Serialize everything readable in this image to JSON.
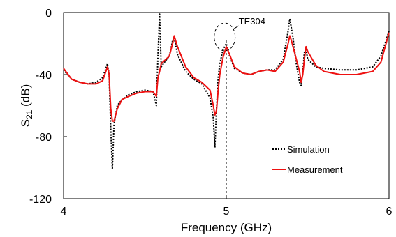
{
  "chart_data": {
    "type": "line",
    "title": "",
    "xlabel": "Frequency (GHz)",
    "ylabel_main": "S",
    "ylabel_sub": "21",
    "ylabel_unit": " (dB)",
    "xlim": [
      4,
      6
    ],
    "ylim": [
      -120,
      0
    ],
    "xticks": [
      4,
      5,
      6
    ],
    "xtick_labels": [
      "4",
      "5",
      "6"
    ],
    "yticks": [
      0,
      -40,
      -80,
      -120
    ],
    "ytick_labels": [
      "0",
      "-40",
      "-80",
      "-120"
    ],
    "grid": false,
    "legend_position": "lower-right",
    "annotation": {
      "label": "TE304",
      "x": 4.99,
      "y": -18
    },
    "series": [
      {
        "name": "Simulation",
        "style": "dotted",
        "color": "#000000",
        "x": [
          4.0,
          4.05,
          4.1,
          4.15,
          4.2,
          4.24,
          4.27,
          4.28,
          4.29,
          4.3,
          4.31,
          4.33,
          4.36,
          4.4,
          4.45,
          4.5,
          4.55,
          4.57,
          4.58,
          4.59,
          4.6,
          4.62,
          4.65,
          4.67,
          4.68,
          4.7,
          4.75,
          4.8,
          4.85,
          4.9,
          4.92,
          4.93,
          4.94,
          4.95,
          4.96,
          4.98,
          5.0,
          5.02,
          5.05,
          5.1,
          5.15,
          5.2,
          5.25,
          5.3,
          5.35,
          5.38,
          5.39,
          5.4,
          5.41,
          5.43,
          5.45,
          5.46,
          5.47,
          5.48,
          5.49,
          5.5,
          5.55,
          5.6,
          5.7,
          5.8,
          5.9,
          5.95,
          6.0
        ],
        "y": [
          -37,
          -43,
          -45,
          -46,
          -45,
          -42,
          -33,
          -40,
          -75,
          -101,
          -72,
          -60,
          -56,
          -53,
          -51,
          -50,
          -51,
          -60,
          -28,
          -1,
          -35,
          -32,
          -28,
          -18,
          -16,
          -27,
          -38,
          -43,
          -46,
          -55,
          -68,
          -87,
          -62,
          -42,
          -33,
          -24,
          -20,
          -28,
          -36,
          -39,
          -40,
          -38,
          -37,
          -37,
          -30,
          -12,
          -4,
          -10,
          -16,
          -33,
          -45,
          -47,
          -38,
          -26,
          -24,
          -30,
          -35,
          -36,
          -37,
          -37,
          -35,
          -28,
          -12
        ]
      },
      {
        "name": "Measurement",
        "style": "solid",
        "color": "#ee1111",
        "x": [
          4.0,
          4.05,
          4.1,
          4.15,
          4.2,
          4.24,
          4.27,
          4.28,
          4.29,
          4.3,
          4.31,
          4.33,
          4.36,
          4.4,
          4.45,
          4.5,
          4.55,
          4.57,
          4.58,
          4.59,
          4.6,
          4.62,
          4.65,
          4.67,
          4.68,
          4.7,
          4.75,
          4.8,
          4.85,
          4.9,
          4.92,
          4.93,
          4.94,
          4.95,
          4.96,
          4.98,
          5.0,
          5.02,
          5.05,
          5.1,
          5.15,
          5.2,
          5.25,
          5.3,
          5.35,
          5.38,
          5.39,
          5.4,
          5.41,
          5.43,
          5.45,
          5.46,
          5.47,
          5.48,
          5.49,
          5.5,
          5.55,
          5.6,
          5.7,
          5.8,
          5.9,
          5.95,
          6.0
        ],
        "y": [
          -36,
          -43,
          -45,
          -46,
          -46,
          -44,
          -35,
          -40,
          -62,
          -70,
          -70,
          -62,
          -56,
          -54,
          -52,
          -51,
          -51,
          -54,
          -42,
          -38,
          -33,
          -31,
          -28,
          -20,
          -15,
          -22,
          -35,
          -42,
          -45,
          -50,
          -60,
          -66,
          -63,
          -50,
          -40,
          -29,
          -22,
          -27,
          -35,
          -39,
          -40,
          -38,
          -37,
          -38,
          -32,
          -20,
          -15,
          -18,
          -22,
          -30,
          -38,
          -45,
          -40,
          -30,
          -22,
          -25,
          -34,
          -38,
          -40,
          -40,
          -38,
          -32,
          -13
        ]
      }
    ]
  }
}
